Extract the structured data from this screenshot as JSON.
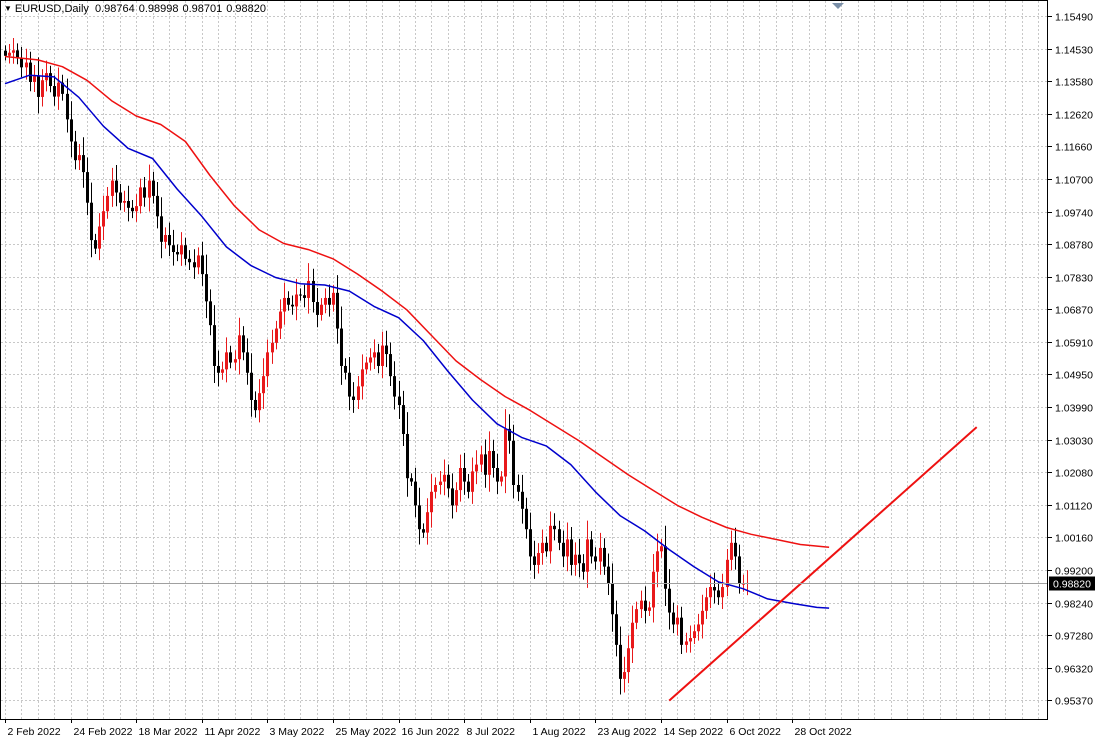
{
  "header": {
    "symbol": "EURUSD",
    "timeframe": "Daily",
    "ohlc": [
      "0.98764",
      "0.98998",
      "0.98701",
      "0.98820"
    ]
  },
  "colors": {
    "background": "#ffffff",
    "grid": "#c8c8c8",
    "bull_candle": "#e8191b",
    "bear_candle": "#000000",
    "ma_fast": "#0000cc",
    "ma_slow": "#ee1111",
    "trendline": "#ee1111",
    "bid_line": "#a0a0a0"
  },
  "chart_data": {
    "type": "candlestick",
    "symbol": "EURUSD",
    "timeframe": "Daily",
    "title": "EURUSD,Daily",
    "ylim": [
      0.9505,
      1.1578
    ],
    "y_ticks": [
      "1.15490",
      "1.14530",
      "1.13580",
      "1.12620",
      "1.11660",
      "1.10700",
      "1.09740",
      "1.08780",
      "1.07830",
      "1.06870",
      "1.05910",
      "1.04950",
      "1.03990",
      "1.03030",
      "1.02080",
      "1.01120",
      "1.00160",
      "0.99200",
      "0.98240",
      "0.97280",
      "0.96320",
      "0.95370"
    ],
    "x_labels": [
      {
        "index": 0,
        "label": "2 Feb 2022"
      },
      {
        "index": 16,
        "label": "24 Feb 2022"
      },
      {
        "index": 32,
        "label": "18 Mar 2022"
      },
      {
        "index": 48,
        "label": "11 Apr 2022"
      },
      {
        "index": 64,
        "label": "3 May 2022"
      },
      {
        "index": 80,
        "label": "25 May 2022"
      },
      {
        "index": 96,
        "label": "16 Jun 2022"
      },
      {
        "index": 112,
        "label": "8 Jul 2022"
      },
      {
        "index": 128,
        "label": "1 Aug 2022"
      },
      {
        "index": 144,
        "label": "23 Aug 2022"
      },
      {
        "index": 160,
        "label": "14 Sep 2022"
      },
      {
        "index": 176,
        "label": "6 Oct 2022"
      },
      {
        "index": 192,
        "label": "28 Oct 2022"
      }
    ],
    "last_price": "0.98820",
    "closes": [
      1.1432,
      1.1441,
      1.1448,
      1.1425,
      1.1398,
      1.1412,
      1.1355,
      1.1372,
      1.1311,
      1.136,
      1.1381,
      1.1343,
      1.1312,
      1.1353,
      1.132,
      1.1245,
      1.118,
      1.1125,
      1.114,
      1.109,
      1.1,
      1.089,
      1.0865,
      1.093,
      1.0975,
      1.102,
      1.1065,
      1.103,
      1.1,
      1.1005,
      1.0985,
      1.0975,
      1.099,
      1.1045,
      1.1015,
      1.1065,
      1.102,
      1.096,
      1.0885,
      1.0905,
      1.0875,
      1.0855,
      1.0848,
      1.0875,
      1.0835,
      1.0825,
      1.081,
      1.0845,
      1.079,
      1.071,
      1.064,
      1.052,
      1.05,
      1.051,
      1.056,
      1.053,
      1.054,
      1.061,
      1.056,
      1.05,
      1.042,
      1.039,
      1.044,
      1.049,
      1.056,
      1.0588,
      1.063,
      1.068,
      1.072,
      1.07,
      1.0695,
      1.073,
      1.0728,
      1.072,
      1.077,
      1.0708,
      1.067,
      1.07,
      1.072,
      1.07,
      1.0735,
      1.063,
      1.052,
      1.05,
      1.043,
      1.042,
      1.046,
      1.051,
      1.053,
      1.0545,
      1.056,
      1.052,
      1.058,
      1.0555,
      1.049,
      1.043,
      1.0405,
      1.032,
      1.019,
      1.018,
      1.011,
      1.004,
      1.003,
      1.009,
      1.015,
      1.017,
      1.018,
      1.02,
      1.016,
      1.011,
      1.0155,
      1.022,
      1.018,
      1.015,
      1.021,
      1.023,
      1.026,
      1.02,
      1.027,
      1.022,
      1.018,
      1.0195,
      1.0335,
      1.03,
      1.017,
      1.015,
      1.01,
      1.004,
      0.996,
      0.9935,
      0.997,
      1.0,
      0.9975,
      1.005,
      1.004,
      1.0,
      0.996,
      1.001,
      0.9935,
      0.9965,
      0.994,
      0.9915,
      1.001,
      0.996,
      0.9945,
      0.9985,
      0.993,
      0.988,
      0.979,
      0.97,
      0.96,
      0.962,
      0.969,
      0.9765,
      0.9805,
      0.983,
      0.98,
      0.981,
      0.9915,
      0.9975,
      0.999,
      0.9865,
      0.9795,
      0.976,
      0.978,
      0.97,
      0.971,
      0.972,
      0.974,
      0.976,
      0.98,
      0.984,
      0.987,
      0.986,
      0.984,
      0.987,
      0.995,
      1.0,
      0.996,
      0.988,
      0.988,
      0.9882
    ],
    "trendline": {
      "from": {
        "index": 162,
        "price": 0.9536
      },
      "to": {
        "index": 237,
        "price": 1.034
      }
    },
    "series": [
      {
        "name": "ma_fast",
        "approx_points": [
          [
            0,
            1.135
          ],
          [
            6,
            1.1375
          ],
          [
            12,
            1.137
          ],
          [
            18,
            1.131
          ],
          [
            24,
            1.1225
          ],
          [
            30,
            1.116
          ],
          [
            36,
            1.113
          ],
          [
            42,
            1.104
          ],
          [
            48,
            1.096
          ],
          [
            54,
            1.087
          ],
          [
            60,
            1.0815
          ],
          [
            66,
            1.078
          ],
          [
            72,
            1.0762
          ],
          [
            78,
            1.0758
          ],
          [
            84,
            1.074
          ],
          [
            90,
            1.0695
          ],
          [
            96,
            1.0662
          ],
          [
            102,
            1.0595
          ],
          [
            108,
            1.0505
          ],
          [
            114,
            1.042
          ],
          [
            120,
            1.035
          ],
          [
            126,
            1.031
          ],
          [
            132,
            1.0285
          ],
          [
            138,
            1.023
          ],
          [
            144,
            1.015
          ],
          [
            150,
            1.008
          ],
          [
            156,
            1.0035
          ],
          [
            162,
            0.998
          ],
          [
            168,
            0.993
          ],
          [
            174,
            0.9885
          ],
          [
            180,
            0.9865
          ],
          [
            186,
            0.9835
          ],
          [
            192,
            0.9822
          ],
          [
            198,
            0.981
          ],
          [
            201,
            0.9808
          ]
        ]
      },
      {
        "name": "ma_slow",
        "approx_points": [
          [
            0,
            1.143
          ],
          [
            8,
            1.142
          ],
          [
            14,
            1.14
          ],
          [
            20,
            1.136
          ],
          [
            26,
            1.13
          ],
          [
            32,
            1.1255
          ],
          [
            38,
            1.123
          ],
          [
            44,
            1.118
          ],
          [
            50,
            1.108
          ],
          [
            56,
            1.099
          ],
          [
            62,
            1.092
          ],
          [
            68,
            1.088
          ],
          [
            74,
            1.0862
          ],
          [
            80,
            1.0835
          ],
          [
            86,
            1.079
          ],
          [
            92,
            1.074
          ],
          [
            98,
            1.0685
          ],
          [
            104,
            1.061
          ],
          [
            110,
            1.0535
          ],
          [
            116,
            1.048
          ],
          [
            122,
            1.043
          ],
          [
            128,
            1.039
          ],
          [
            134,
            1.0345
          ],
          [
            140,
            1.03
          ],
          [
            146,
            1.025
          ],
          [
            152,
            1.02
          ],
          [
            158,
            1.0155
          ],
          [
            164,
            1.011
          ],
          [
            170,
            1.0075
          ],
          [
            176,
            1.0045
          ],
          [
            182,
            1.0025
          ],
          [
            188,
            1.001
          ],
          [
            194,
            0.9995
          ],
          [
            200,
            0.9988
          ],
          [
            201,
            0.9987
          ]
        ]
      }
    ]
  }
}
